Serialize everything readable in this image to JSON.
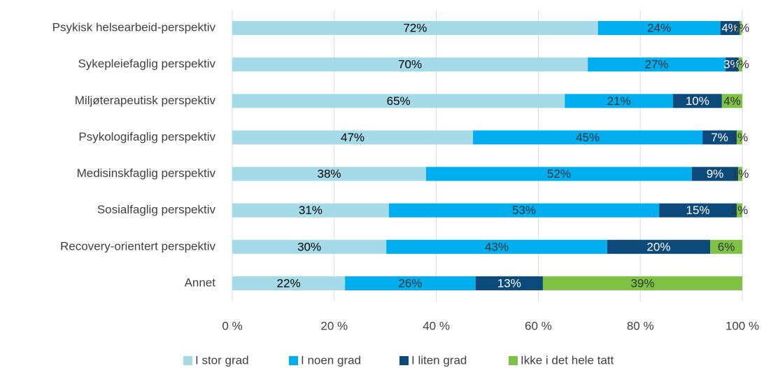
{
  "chart_data": {
    "type": "stacked_barh",
    "categories": [
      "Psykisk helsearbeid-perspektiv",
      "Sykepleiefaglig perspektiv",
      "Miljøterapeutisk perspektiv",
      "Psykologifaglig perspektiv",
      "Medisinskfaglig perspektiv",
      "Sosialfaglig perspektiv",
      "Recovery-orientert perspektiv",
      "Annet"
    ],
    "series": [
      {
        "name": "I stor grad",
        "color": "#a5dbe8",
        "values": [
          71.7,
          69.7,
          65.2,
          47.2,
          38.0,
          30.7,
          30.2,
          22.1
        ],
        "value_labels": [
          "72%",
          "70%",
          "65%",
          "47%",
          "38%",
          "31%",
          "30%",
          "22%"
        ]
      },
      {
        "name": "I noen grad",
        "color": "#00aeef",
        "values": [
          24.0,
          27.0,
          21.2,
          45.0,
          52.1,
          53.0,
          43.3,
          25.6
        ],
        "value_labels": [
          "24%",
          "27%",
          "21%",
          "45%",
          "52%",
          "53%",
          "43%",
          "26%"
        ]
      },
      {
        "name": "I liten grad",
        "color": "#0b4a7a",
        "values": [
          3.8,
          2.6,
          9.6,
          6.7,
          9.1,
          15.2,
          20.2,
          13.2
        ],
        "value_labels": [
          "4%",
          "3%",
          "10%",
          "7%",
          "9%",
          "15%",
          "20%",
          "13%"
        ]
      },
      {
        "name": "Ikke i det hele tatt",
        "color": "#7dc242",
        "values": [
          0.4,
          0.7,
          4.0,
          1.1,
          0.8,
          1.1,
          6.3,
          39.1
        ],
        "value_labels": [
          "0%",
          "1%",
          "4%",
          "1%",
          "1%",
          "1%",
          "6%",
          "39%"
        ]
      }
    ],
    "xlim": [
      0,
      100
    ],
    "xticks": [
      {
        "value": 0,
        "label": "0 %"
      },
      {
        "value": 20,
        "label": "20 %"
      },
      {
        "value": 40,
        "label": "40 %"
      },
      {
        "value": 60,
        "label": "60 %"
      },
      {
        "value": 80,
        "label": "80 %"
      },
      {
        "value": 100,
        "label": "100 %"
      }
    ],
    "grid": true,
    "legend": "bottom"
  }
}
